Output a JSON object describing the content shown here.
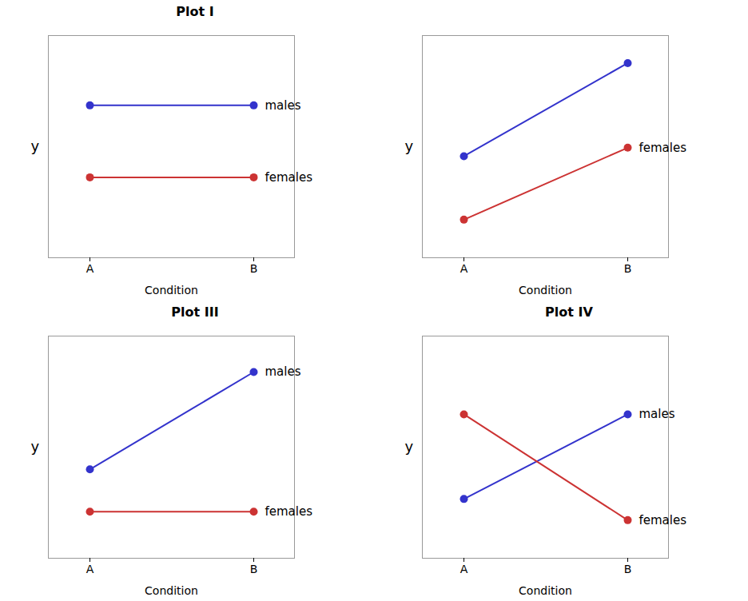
{
  "chart_data": [
    {
      "type": "line",
      "title": "Plot I",
      "categories": [
        "A",
        "B"
      ],
      "series": [
        {
          "name": "males",
          "color": "#3333cc",
          "values": [
            0.72,
            0.72
          ],
          "marker": "circle"
        },
        {
          "name": "females",
          "color": "#cc3333",
          "values": [
            0.38,
            0.38
          ],
          "marker": "circle"
        }
      ],
      "xlabel": "Condition",
      "ylabel": "y",
      "ylim": [
        0.0,
        1.05
      ],
      "yticks": [],
      "tick_labels": "x",
      "grid": false
    },
    {
      "type": "line",
      "categories": [
        "A",
        "B"
      ],
      "series": [
        {
          "color": "#3333cc",
          "values": [
            0.48,
            0.92
          ],
          "marker": "circle"
        },
        {
          "name": "females",
          "color": "#cc3333",
          "values": [
            0.18,
            0.52
          ],
          "marker": "circle"
        }
      ],
      "xlabel": "Condition",
      "ylabel": "y",
      "ylim": [
        0.0,
        1.05
      ],
      "yticks": [],
      "tick_labels": "x",
      "grid": false
    },
    {
      "type": "line",
      "title": "Plot III",
      "categories": [
        "A",
        "B"
      ],
      "series": [
        {
          "name": "males",
          "color": "#3333cc",
          "values": [
            0.42,
            0.88
          ],
          "marker": "circle"
        },
        {
          "name": "females",
          "color": "#cc3333",
          "values": [
            0.22,
            0.22
          ],
          "marker": "circle"
        }
      ],
      "xlabel": "Condition",
      "ylabel": "y",
      "ylim": [
        0.0,
        1.05
      ],
      "yticks": [],
      "tick_labels": "x",
      "grid": false
    },
    {
      "type": "line",
      "title": "Plot IV",
      "categories": [
        "A",
        "B"
      ],
      "series": [
        {
          "name": "males",
          "color": "#3333cc",
          "values": [
            0.28,
            0.68
          ],
          "marker": "circle"
        },
        {
          "name": "females",
          "color": "#cc3333",
          "values": [
            0.68,
            0.18
          ],
          "marker": "circle"
        }
      ],
      "xlabel": "Condition",
      "ylabel": "y",
      "ylim": [
        0.0,
        1.05
      ],
      "yticks": [],
      "tick_labels": "x",
      "grid": false
    }
  ]
}
